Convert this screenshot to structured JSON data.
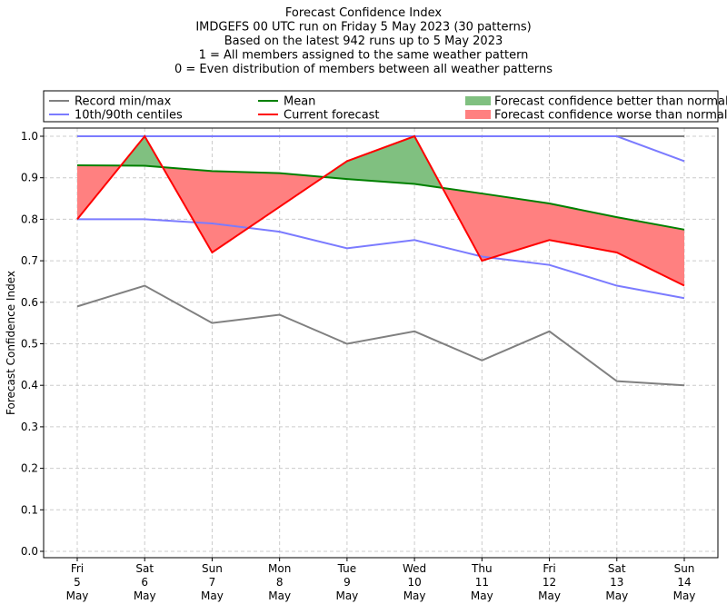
{
  "chart_data": {
    "type": "line",
    "title_lines": [
      "Forecast Confidence Index",
      "IMDGEFS 00 UTC run on Friday 5 May 2023 (30 patterns)",
      "Based on the latest 942 runs up to 5 May 2023",
      "1 = All members assigned to the same weather pattern",
      "0 = Even distribution of members between all weather patterns"
    ],
    "ylabel": "Forecast Confidence Index",
    "ylim": [
      0,
      1
    ],
    "yticks": [
      "0.0",
      "0.1",
      "0.2",
      "0.3",
      "0.4",
      "0.5",
      "0.6",
      "0.7",
      "0.8",
      "0.9",
      "1.0"
    ],
    "categories": [
      [
        "Fri",
        "5",
        "May"
      ],
      [
        "Sat",
        "6",
        "May"
      ],
      [
        "Sun",
        "7",
        "May"
      ],
      [
        "Mon",
        "8",
        "May"
      ],
      [
        "Tue",
        "9",
        "May"
      ],
      [
        "Wed",
        "10",
        "May"
      ],
      [
        "Thu",
        "11",
        "May"
      ],
      [
        "Fri",
        "12",
        "May"
      ],
      [
        "Sat",
        "13",
        "May"
      ],
      [
        "Sun",
        "14",
        "May"
      ]
    ],
    "grid": true,
    "legend": {
      "placement": "top",
      "entries": [
        {
          "label": "Record min/max",
          "color": "#808080",
          "kind": "line"
        },
        {
          "label": "10th/90th centiles",
          "color": "#7b7bff",
          "kind": "line"
        },
        {
          "label": "Mean",
          "color": "#008000",
          "kind": "line"
        },
        {
          "label": "Current forecast",
          "color": "#ff0000",
          "kind": "line"
        },
        {
          "label": "Forecast confidence better than normal",
          "color": "#80c080",
          "kind": "patch"
        },
        {
          "label": "Forecast confidence worse than normal",
          "color": "#ff8080",
          "kind": "patch"
        }
      ]
    },
    "series": [
      {
        "name": "Record max",
        "color": "#808080",
        "values": [
          1,
          1,
          1,
          1,
          1,
          1,
          1,
          1,
          1,
          1
        ]
      },
      {
        "name": "Record min",
        "color": "#808080",
        "values": [
          0.59,
          0.64,
          0.55,
          0.57,
          0.5,
          0.53,
          0.46,
          0.53,
          0.41,
          0.4
        ]
      },
      {
        "name": "90th centile",
        "color": "#7b7bff",
        "values": [
          1,
          1,
          1,
          1,
          1,
          1,
          1,
          1,
          1,
          0.94
        ]
      },
      {
        "name": "10th centile",
        "color": "#7b7bff",
        "values": [
          0.8,
          0.8,
          0.79,
          0.77,
          0.73,
          0.75,
          0.71,
          0.69,
          0.64,
          0.61
        ]
      },
      {
        "name": "Mean",
        "color": "#008000",
        "values": [
          0.93,
          0.929,
          0.916,
          0.911,
          0.897,
          0.885,
          0.862,
          0.838,
          0.805,
          0.775
        ]
      },
      {
        "name": "Current forecast",
        "color": "#ff0000",
        "values": [
          0.8,
          1.0,
          0.72,
          0.83,
          0.94,
          1.0,
          0.7,
          0.75,
          0.72,
          0.64
        ]
      }
    ]
  }
}
